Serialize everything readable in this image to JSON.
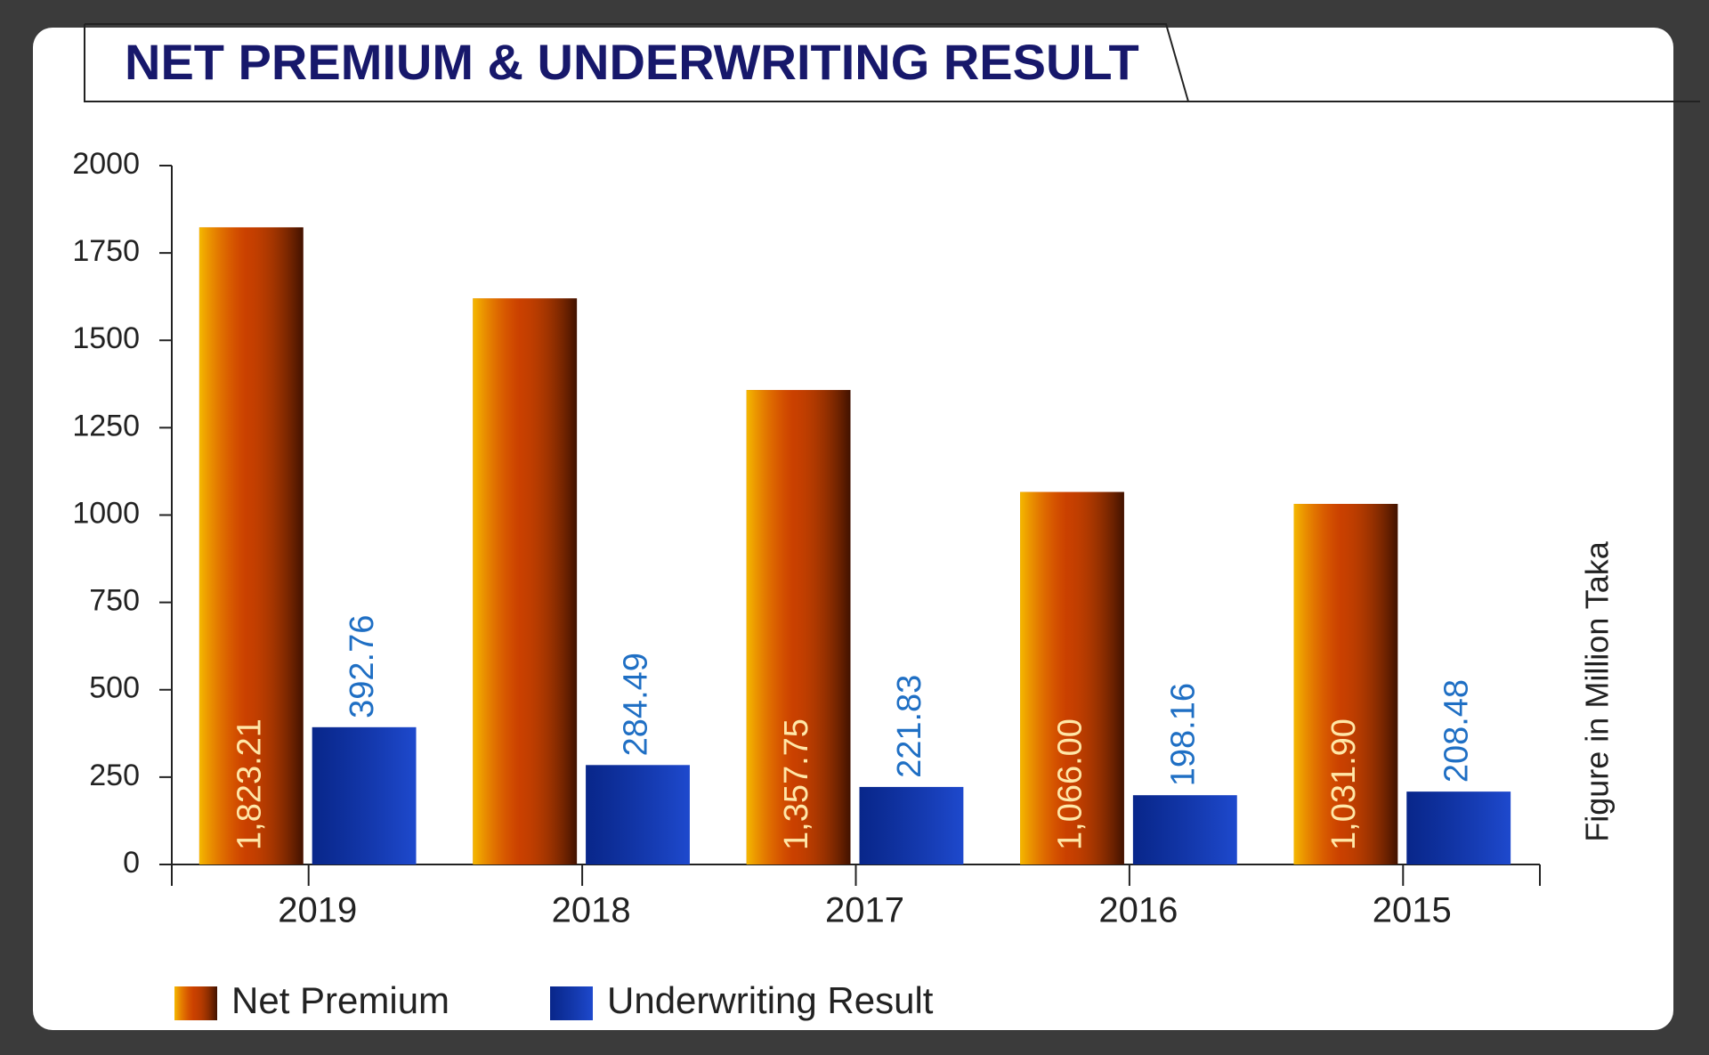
{
  "chart_data": {
    "type": "bar",
    "title": "NET PREMIUM & UNDERWRITING RESULT",
    "y_label": "Figure in Million Taka",
    "categories": [
      "2019",
      "2018",
      "2017",
      "2016",
      "2015"
    ],
    "series": [
      {
        "name": "Net Premium",
        "color": "#b83200",
        "values": [
          1823.21,
          1620,
          1357.75,
          1066.0,
          1031.9
        ],
        "value_labels": [
          "1,823.21",
          null,
          "1,357.75",
          "1,066.00",
          "1,031.90"
        ]
      },
      {
        "name": "Underwriting Result",
        "color": "#0b33b8",
        "values": [
          392.76,
          284.49,
          221.83,
          198.16,
          208.48
        ]
      }
    ],
    "ylim": [
      0,
      2000
    ],
    "yticks": [
      0,
      250,
      500,
      750,
      1000,
      1250,
      1500,
      1750,
      2000
    ],
    "legend": "bottom-left"
  }
}
